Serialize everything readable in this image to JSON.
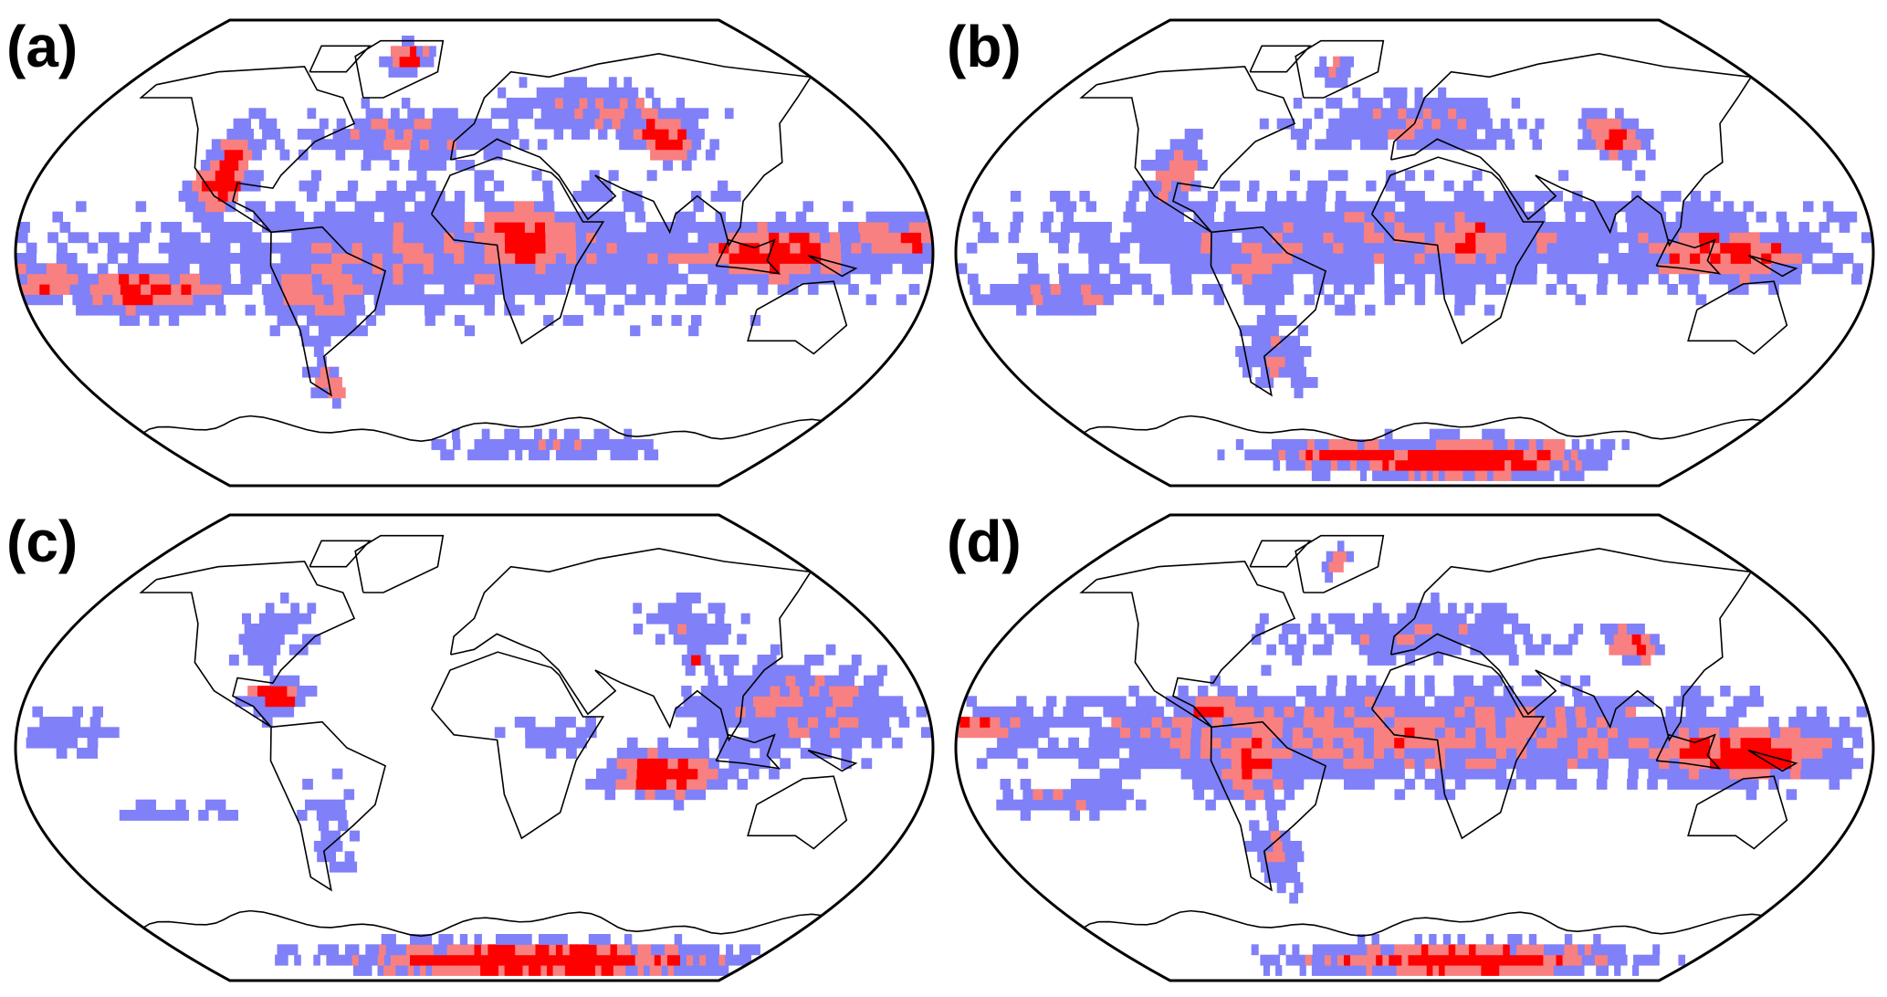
{
  "colors": {
    "low": "#8080f8",
    "mid": "#f88080",
    "high": "#ff0000",
    "coast": "#000000"
  },
  "panels": [
    {
      "label": "(a)",
      "blobs": [
        [
          0,
          0,
          180,
          28,
          0.55
        ],
        [
          20,
          5,
          25,
          14,
          1.1
        ],
        [
          120,
          0,
          40,
          12,
          1.05
        ],
        [
          -105,
          30,
          12,
          18,
          1.05
        ],
        [
          85,
          45,
          18,
          10,
          1.05
        ],
        [
          -40,
          75,
          12,
          6,
          1.2
        ],
        [
          -130,
          -15,
          35,
          10,
          0.95
        ],
        [
          -60,
          -15,
          25,
          20,
          0.7
        ],
        [
          -65,
          -50,
          8,
          8,
          0.9
        ],
        [
          -30,
          45,
          60,
          12,
          0.6
        ],
        [
          60,
          55,
          50,
          12,
          0.6
        ],
        [
          40,
          -75,
          80,
          6,
          0.55
        ],
        [
          170,
          5,
          30,
          12,
          0.8
        ],
        [
          -170,
          -10,
          25,
          10,
          0.8
        ]
      ]
    },
    {
      "label": "(b)",
      "blobs": [
        [
          0,
          5,
          180,
          25,
          0.55
        ],
        [
          90,
          45,
          14,
          9,
          1.05
        ],
        [
          120,
          0,
          45,
          12,
          0.95
        ],
        [
          20,
          5,
          30,
          12,
          0.85
        ],
        [
          -100,
          30,
          12,
          15,
          0.8
        ],
        [
          -140,
          -15,
          35,
          8,
          0.7
        ],
        [
          30,
          -80,
          80,
          8,
          1.2
        ],
        [
          -30,
          -78,
          60,
          6,
          1.0
        ],
        [
          0,
          50,
          60,
          12,
          0.6
        ],
        [
          -60,
          -40,
          15,
          15,
          0.65
        ],
        [
          -60,
          -5,
          20,
          15,
          0.7
        ],
        [
          -45,
          70,
          10,
          6,
          0.7
        ]
      ]
    },
    {
      "label": "(c)",
      "blobs": [
        [
          130,
          15,
          50,
          20,
          0.65
        ],
        [
          75,
          -10,
          25,
          10,
          1.05
        ],
        [
          -80,
          20,
          12,
          8,
          0.95
        ],
        [
          40,
          -82,
          120,
          7,
          1.25
        ],
        [
          -90,
          45,
          20,
          15,
          0.5
        ],
        [
          100,
          48,
          30,
          10,
          0.5
        ],
        [
          95,
          35,
          5,
          4,
          1.0
        ],
        [
          -60,
          -30,
          12,
          25,
          0.45
        ],
        [
          30,
          5,
          25,
          8,
          0.45
        ],
        [
          -160,
          5,
          25,
          10,
          0.45
        ],
        [
          -120,
          -25,
          25,
          5,
          0.4
        ]
      ]
    },
    {
      "label": "(d)",
      "blobs": [
        [
          0,
          5,
          180,
          20,
          0.7
        ],
        [
          95,
          40,
          12,
          8,
          1.0
        ],
        [
          130,
          -2,
          45,
          12,
          1.05
        ],
        [
          -65,
          -5,
          20,
          18,
          0.9
        ],
        [
          -80,
          15,
          15,
          8,
          0.9
        ],
        [
          -45,
          72,
          8,
          5,
          0.8
        ],
        [
          30,
          -82,
          100,
          7,
          1.15
        ],
        [
          -140,
          -20,
          30,
          8,
          0.6
        ],
        [
          0,
          45,
          70,
          12,
          0.55
        ],
        [
          -60,
          -40,
          12,
          15,
          0.65
        ],
        [
          20,
          0,
          20,
          10,
          0.7
        ],
        [
          -170,
          8,
          20,
          6,
          0.9
        ]
      ]
    }
  ]
}
